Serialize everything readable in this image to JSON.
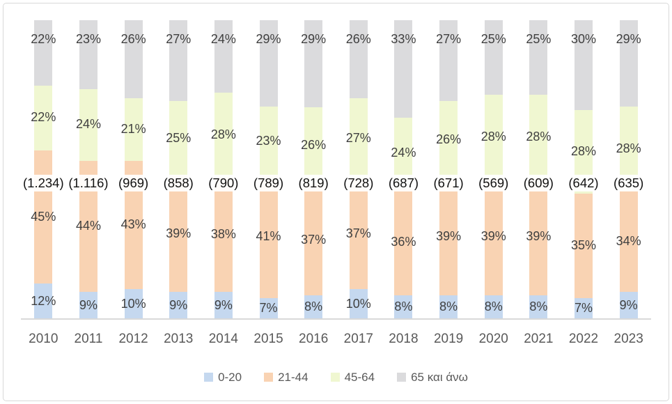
{
  "chart_data": {
    "type": "stacked-bar-100",
    "title": "",
    "categories": [
      "2010",
      "2011",
      "2012",
      "2013",
      "2014",
      "2015",
      "2016",
      "2017",
      "2018",
      "2019",
      "2020",
      "2021",
      "2022",
      "2023"
    ],
    "series": [
      {
        "name": "0-20",
        "color": "#c5d8ef",
        "values": [
          12,
          9,
          10,
          9,
          9,
          7,
          8,
          10,
          8,
          8,
          8,
          8,
          7,
          9
        ],
        "labels": [
          "12%",
          "9%",
          "10%",
          "9%",
          "9%",
          "7%",
          "8%",
          "10%",
          "8%",
          "8%",
          "8%",
          "8%",
          "7%",
          "9%"
        ]
      },
      {
        "name": "21-44",
        "color": "#f9d3b3",
        "values": [
          45,
          44,
          43,
          39,
          38,
          41,
          37,
          37,
          36,
          39,
          39,
          39,
          35,
          34
        ],
        "labels": [
          "45%",
          "44%",
          "43%",
          "39%",
          "38%",
          "41%",
          "37%",
          "37%",
          "36%",
          "39%",
          "39%",
          "39%",
          "35%",
          "34%"
        ]
      },
      {
        "name": "45-64",
        "color": "#f0f7d1",
        "values": [
          22,
          24,
          21,
          25,
          28,
          23,
          26,
          27,
          24,
          26,
          28,
          28,
          28,
          28
        ],
        "labels": [
          "22%",
          "24%",
          "21%",
          "25%",
          "28%",
          "23%",
          "26%",
          "27%",
          "24%",
          "26%",
          "28%",
          "28%",
          "28%",
          "28%"
        ]
      },
      {
        "name": "65 και άνω",
        "color": "#dbdbdd",
        "values": [
          22,
          23,
          26,
          27,
          24,
          29,
          29,
          26,
          33,
          27,
          25,
          25,
          30,
          29
        ],
        "labels": [
          "22%",
          "23%",
          "26%",
          "27%",
          "24%",
          "29%",
          "29%",
          "26%",
          "33%",
          "27%",
          "25%",
          "25%",
          "30%",
          "29%"
        ]
      }
    ],
    "totals": [
      "(1.234)",
      "(1.116)",
      "(969)",
      "(858)",
      "(790)",
      "(789)",
      "(819)",
      "(728)",
      "(687)",
      "(671)",
      "(569)",
      "(609)",
      "(642)",
      "(635)"
    ],
    "legend_position": "bottom",
    "grid": false,
    "value_axis_visible": false
  },
  "colors": {
    "segment_label": "#3f3f3f",
    "total_label": "#121212",
    "axis_text": "#595959",
    "axis_line": "#d9d9d9",
    "frame_border": "#d9d9d9",
    "background": "#ffffff"
  }
}
